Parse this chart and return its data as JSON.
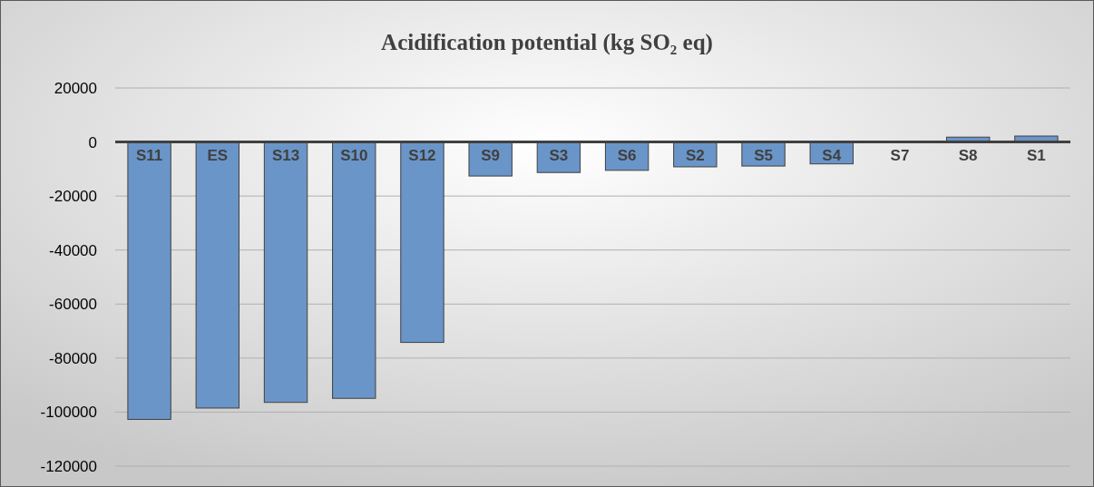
{
  "chart_data": {
    "type": "bar",
    "title": "Acidification potential (kg SO₂ eq)",
    "categories": [
      "S11",
      "ES",
      "S13",
      "S10",
      "S12",
      "S9",
      "S3",
      "S6",
      "S2",
      "S5",
      "S4",
      "S7",
      "S8",
      "S1"
    ],
    "values": [
      -102700,
      -98500,
      -96400,
      -94900,
      -74200,
      -12600,
      -11300,
      -10500,
      -9200,
      -8900,
      -8100,
      -300,
      1800,
      2200
    ],
    "color": "#6a95c8",
    "ylim": [
      -120000,
      20000
    ],
    "yticks": [
      -120000,
      -100000,
      -80000,
      -60000,
      -40000,
      -20000,
      0,
      20000
    ],
    "grid": "y"
  }
}
